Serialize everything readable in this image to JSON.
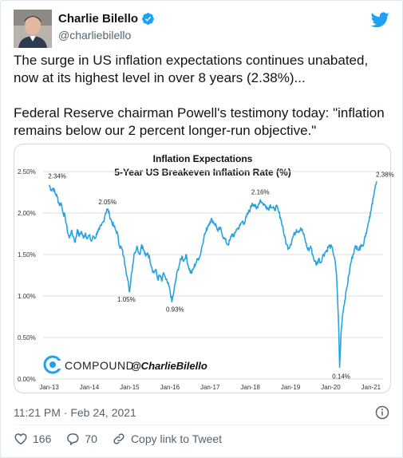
{
  "author": {
    "name": "Charlie Bilello",
    "handle": "@charliebilello",
    "verified": true
  },
  "tweet": {
    "paragraph1": "The surge in US inflation expectations continues unabated, now at its highest level in over 8 years (2.38%)...",
    "paragraph2": "Federal Reserve chairman Powell's testimony today: \"inflation remains below our 2 percent longer-run objective.\""
  },
  "meta": {
    "timestamp": "11:21 PM · Feb 24, 2021"
  },
  "actions": {
    "likes": "166",
    "replies": "70",
    "copy_link": "Copy link to Tweet"
  },
  "colors": {
    "line": "#29a3e0",
    "brand": "#1da1f2",
    "grid": "#dcdcdc"
  },
  "chart_data": {
    "type": "line",
    "title": "Inflation Expectations",
    "subtitle": "5-Year US Breakeven Inflation Rate (%)",
    "watermark": "COMPOUND @CharlieBilello",
    "watermark_brand": "COMPOUND",
    "watermark_handle": "@CharlieBilello",
    "xlabel": "",
    "ylabel": "",
    "ylim": [
      0,
      2.5
    ],
    "y_ticks": [
      "0.00%",
      "0.50%",
      "1.00%",
      "1.50%",
      "2.00%",
      "2.50%"
    ],
    "x_ticks": [
      "Jan-13",
      "Jan-14",
      "Jan-15",
      "Jan-16",
      "Jan-17",
      "Jan-18",
      "Jan-19",
      "Jan-20",
      "Jan-21"
    ],
    "grid": "horizontal",
    "series": [
      {
        "values": [
          [
            2013.0,
            2.34
          ],
          [
            2013.05,
            2.28
          ],
          [
            2013.1,
            2.3
          ],
          [
            2013.15,
            2.24
          ],
          [
            2013.2,
            2.2
          ],
          [
            2013.25,
            2.1
          ],
          [
            2013.3,
            2.12
          ],
          [
            2013.35,
            2.0
          ],
          [
            2013.4,
            1.95
          ],
          [
            2013.45,
            1.8
          ],
          [
            2013.5,
            1.7
          ],
          [
            2013.55,
            1.78
          ],
          [
            2013.6,
            1.72
          ],
          [
            2013.65,
            1.65
          ],
          [
            2013.7,
            1.8
          ],
          [
            2013.75,
            1.72
          ],
          [
            2013.8,
            1.78
          ],
          [
            2013.85,
            1.7
          ],
          [
            2013.9,
            1.76
          ],
          [
            2013.95,
            1.7
          ],
          [
            2014.0,
            1.73
          ],
          [
            2014.05,
            1.66
          ],
          [
            2014.1,
            1.72
          ],
          [
            2014.15,
            1.7
          ],
          [
            2014.2,
            1.78
          ],
          [
            2014.25,
            1.8
          ],
          [
            2014.3,
            1.85
          ],
          [
            2014.35,
            1.9
          ],
          [
            2014.4,
            2.0
          ],
          [
            2014.45,
            2.05
          ],
          [
            2014.5,
            1.98
          ],
          [
            2014.55,
            1.9
          ],
          [
            2014.6,
            1.85
          ],
          [
            2014.65,
            1.8
          ],
          [
            2014.7,
            1.75
          ],
          [
            2014.75,
            1.6
          ],
          [
            2014.8,
            1.58
          ],
          [
            2014.85,
            1.48
          ],
          [
            2014.9,
            1.35
          ],
          [
            2014.95,
            1.2
          ],
          [
            2015.0,
            1.05
          ],
          [
            2015.04,
            1.25
          ],
          [
            2015.08,
            1.38
          ],
          [
            2015.12,
            1.52
          ],
          [
            2015.18,
            1.6
          ],
          [
            2015.25,
            1.5
          ],
          [
            2015.3,
            1.62
          ],
          [
            2015.35,
            1.55
          ],
          [
            2015.4,
            1.48
          ],
          [
            2015.45,
            1.52
          ],
          [
            2015.5,
            1.45
          ],
          [
            2015.55,
            1.35
          ],
          [
            2015.6,
            1.28
          ],
          [
            2015.65,
            1.32
          ],
          [
            2015.7,
            1.2
          ],
          [
            2015.75,
            1.25
          ],
          [
            2015.8,
            1.18
          ],
          [
            2015.85,
            1.28
          ],
          [
            2015.9,
            1.2
          ],
          [
            2015.95,
            1.15
          ],
          [
            2016.0,
            1.08
          ],
          [
            2016.05,
            0.93
          ],
          [
            2016.1,
            1.05
          ],
          [
            2016.15,
            1.2
          ],
          [
            2016.2,
            1.32
          ],
          [
            2016.25,
            1.4
          ],
          [
            2016.3,
            1.48
          ],
          [
            2016.35,
            1.42
          ],
          [
            2016.4,
            1.5
          ],
          [
            2016.45,
            1.38
          ],
          [
            2016.5,
            1.3
          ],
          [
            2016.55,
            1.28
          ],
          [
            2016.6,
            1.35
          ],
          [
            2016.65,
            1.4
          ],
          [
            2016.7,
            1.45
          ],
          [
            2016.75,
            1.48
          ],
          [
            2016.8,
            1.6
          ],
          [
            2016.85,
            1.72
          ],
          [
            2016.9,
            1.78
          ],
          [
            2016.95,
            1.85
          ],
          [
            2017.0,
            1.9
          ],
          [
            2017.05,
            1.92
          ],
          [
            2017.1,
            1.88
          ],
          [
            2017.15,
            1.85
          ],
          [
            2017.2,
            1.78
          ],
          [
            2017.25,
            1.82
          ],
          [
            2017.3,
            1.75
          ],
          [
            2017.35,
            1.7
          ],
          [
            2017.4,
            1.65
          ],
          [
            2017.45,
            1.62
          ],
          [
            2017.5,
            1.68
          ],
          [
            2017.55,
            1.75
          ],
          [
            2017.6,
            1.72
          ],
          [
            2017.65,
            1.8
          ],
          [
            2017.7,
            1.82
          ],
          [
            2017.75,
            1.85
          ],
          [
            2017.8,
            1.9
          ],
          [
            2017.85,
            1.88
          ],
          [
            2017.9,
            1.95
          ],
          [
            2017.95,
            2.0
          ],
          [
            2018.0,
            2.05
          ],
          [
            2018.05,
            2.12
          ],
          [
            2018.1,
            2.1
          ],
          [
            2018.15,
            2.05
          ],
          [
            2018.2,
            2.1
          ],
          [
            2018.25,
            2.16
          ],
          [
            2018.3,
            2.12
          ],
          [
            2018.35,
            2.1
          ],
          [
            2018.4,
            2.08
          ],
          [
            2018.45,
            2.05
          ],
          [
            2018.5,
            2.1
          ],
          [
            2018.55,
            2.06
          ],
          [
            2018.6,
            2.04
          ],
          [
            2018.65,
            2.08
          ],
          [
            2018.7,
            2.02
          ],
          [
            2018.75,
            1.95
          ],
          [
            2018.8,
            1.85
          ],
          [
            2018.85,
            1.72
          ],
          [
            2018.9,
            1.62
          ],
          [
            2018.95,
            1.58
          ],
          [
            2019.0,
            1.62
          ],
          [
            2019.05,
            1.7
          ],
          [
            2019.1,
            1.75
          ],
          [
            2019.15,
            1.8
          ],
          [
            2019.2,
            1.78
          ],
          [
            2019.25,
            1.82
          ],
          [
            2019.3,
            1.78
          ],
          [
            2019.35,
            1.7
          ],
          [
            2019.4,
            1.6
          ],
          [
            2019.45,
            1.55
          ],
          [
            2019.5,
            1.6
          ],
          [
            2019.55,
            1.5
          ],
          [
            2019.6,
            1.42
          ],
          [
            2019.65,
            1.38
          ],
          [
            2019.7,
            1.45
          ],
          [
            2019.75,
            1.4
          ],
          [
            2019.8,
            1.48
          ],
          [
            2019.85,
            1.52
          ],
          [
            2019.9,
            1.55
          ],
          [
            2019.95,
            1.6
          ],
          [
            2020.0,
            1.6
          ],
          [
            2020.05,
            1.55
          ],
          [
            2020.1,
            1.45
          ],
          [
            2020.15,
            1.2
          ],
          [
            2020.2,
            0.6
          ],
          [
            2020.22,
            0.14
          ],
          [
            2020.26,
            0.6
          ],
          [
            2020.3,
            0.8
          ],
          [
            2020.35,
            0.95
          ],
          [
            2020.4,
            1.1
          ],
          [
            2020.45,
            1.25
          ],
          [
            2020.5,
            1.4
          ],
          [
            2020.55,
            1.5
          ],
          [
            2020.6,
            1.58
          ],
          [
            2020.65,
            1.6
          ],
          [
            2020.7,
            1.55
          ],
          [
            2020.75,
            1.62
          ],
          [
            2020.8,
            1.6
          ],
          [
            2020.85,
            1.72
          ],
          [
            2020.9,
            1.8
          ],
          [
            2020.95,
            1.9
          ],
          [
            2021.0,
            2.02
          ],
          [
            2021.05,
            2.18
          ],
          [
            2021.1,
            2.3
          ],
          [
            2021.15,
            2.38
          ]
        ]
      }
    ],
    "annotations": [
      {
        "x": 2013.0,
        "y": 2.34,
        "text": "2.34%"
      },
      {
        "x": 2014.45,
        "y": 2.05,
        "text": "2.05%"
      },
      {
        "x": 2015.0,
        "y": 1.05,
        "text": "1.05%"
      },
      {
        "x": 2016.05,
        "y": 0.93,
        "text": "0.93%"
      },
      {
        "x": 2018.25,
        "y": 2.16,
        "text": "2.16%"
      },
      {
        "x": 2020.22,
        "y": 0.14,
        "text": "0.14%"
      },
      {
        "x": 2021.15,
        "y": 2.38,
        "text": "2.38%"
      }
    ]
  }
}
